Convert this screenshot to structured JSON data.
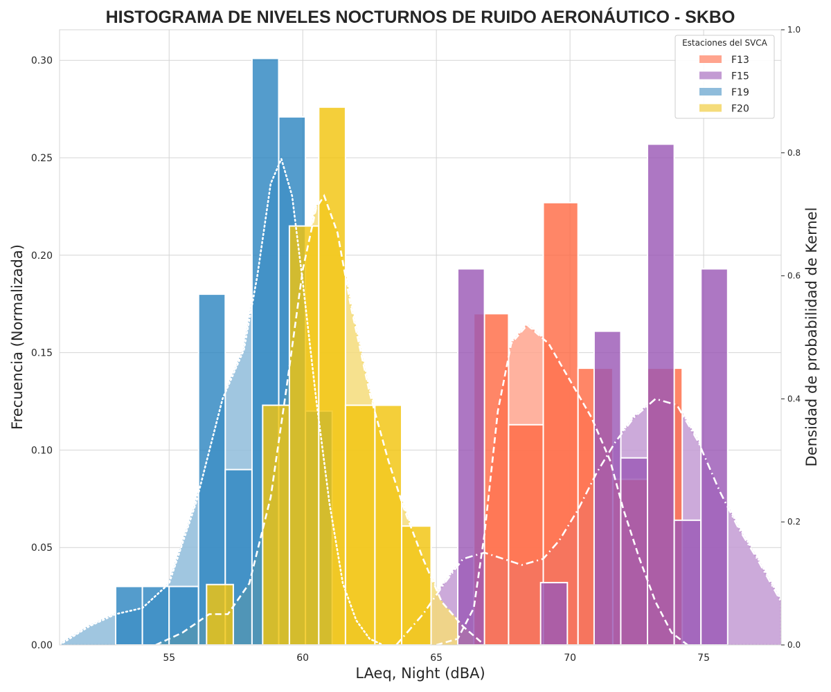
{
  "chart_data": {
    "type": "bar",
    "title": "HISTOGRAMA DE NIVELES NOCTURNOS DE RUIDO AERONÁUTICO - SKBO",
    "xlabel": "LAeq, Night (dBA)",
    "ylabel": "Frecuencia (Normalizada)",
    "y2label": "Densidad de probabilidad de Kernel",
    "xlim": [
      50.9,
      77.9
    ],
    "ylim": [
      0,
      0.3157
    ],
    "y2lim": [
      0,
      1.0
    ],
    "xticks": [
      "55",
      "60",
      "65",
      "70",
      "75"
    ],
    "yticks": [
      "0.00",
      "0.05",
      "0.10",
      "0.15",
      "0.20",
      "0.25",
      "0.30"
    ],
    "y2ticks": [
      "0.0",
      "0.2",
      "0.4",
      "0.6",
      "0.8",
      "1.0"
    ],
    "grid": true,
    "legend": {
      "title": "Estaciones del SVCA",
      "position": "top-right"
    },
    "series": [
      {
        "name": "F13",
        "color": "#FF6B45",
        "kde_color": "#FFA48E",
        "kde_style": "dashed",
        "bars": [
          {
            "x0": 66.4,
            "x1": 67.7,
            "value": 0.17
          },
          {
            "x0": 67.7,
            "x1": 69.0,
            "value": 0.113
          },
          {
            "x0": 69.0,
            "x1": 70.3,
            "value": 0.227
          },
          {
            "x0": 70.3,
            "x1": 71.6,
            "value": 0.142
          },
          {
            "x0": 71.6,
            "x1": 72.9,
            "value": 0.085
          },
          {
            "x0": 72.9,
            "x1": 74.2,
            "value": 0.142
          }
        ],
        "kde": [
          [
            65.0,
            0.0
          ],
          [
            65.8,
            0.01
          ],
          [
            66.4,
            0.06
          ],
          [
            66.8,
            0.18
          ],
          [
            67.3,
            0.38
          ],
          [
            67.8,
            0.49
          ],
          [
            68.4,
            0.52
          ],
          [
            69.2,
            0.49
          ],
          [
            70.0,
            0.43
          ],
          [
            70.8,
            0.37
          ],
          [
            71.5,
            0.3
          ],
          [
            72.0,
            0.22
          ],
          [
            72.6,
            0.14
          ],
          [
            73.2,
            0.07
          ],
          [
            73.8,
            0.02
          ],
          [
            74.4,
            0.0
          ]
        ]
      },
      {
        "name": "F15",
        "color": "#9B59B6",
        "kde_color": "#C39BD3",
        "kde_style": "dashdot",
        "bars": [
          {
            "x0": 65.8,
            "x1": 66.8,
            "value": 0.193
          },
          {
            "x0": 68.9,
            "x1": 69.9,
            "value": 0.032
          },
          {
            "x0": 70.9,
            "x1": 71.9,
            "value": 0.161
          },
          {
            "x0": 71.9,
            "x1": 72.9,
            "value": 0.096
          },
          {
            "x0": 72.9,
            "x1": 73.9,
            "value": 0.257
          },
          {
            "x0": 73.9,
            "x1": 74.9,
            "value": 0.064
          },
          {
            "x0": 74.9,
            "x1": 75.9,
            "value": 0.193
          }
        ],
        "kde": [
          [
            63.5,
            0.0
          ],
          [
            64.5,
            0.05
          ],
          [
            65.3,
            0.1
          ],
          [
            66.0,
            0.14
          ],
          [
            66.8,
            0.15
          ],
          [
            67.5,
            0.14
          ],
          [
            68.2,
            0.13
          ],
          [
            69.0,
            0.14
          ],
          [
            69.6,
            0.17
          ],
          [
            70.3,
            0.22
          ],
          [
            71.0,
            0.28
          ],
          [
            71.7,
            0.33
          ],
          [
            72.4,
            0.37
          ],
          [
            73.2,
            0.4
          ],
          [
            74.0,
            0.39
          ],
          [
            74.8,
            0.33
          ],
          [
            75.6,
            0.25
          ],
          [
            76.3,
            0.19
          ],
          [
            77.0,
            0.14
          ],
          [
            77.9,
            0.07
          ]
        ]
      },
      {
        "name": "F19",
        "color": "#2E86C1",
        "kde_color": "#8FBCDB",
        "kde_style": "dotted",
        "bars": [
          {
            "x0": 53.0,
            "x1": 54.0,
            "value": 0.03
          },
          {
            "x0": 54.0,
            "x1": 55.0,
            "value": 0.03
          },
          {
            "x0": 55.0,
            "x1": 56.1,
            "value": 0.03
          },
          {
            "x0": 56.1,
            "x1": 57.1,
            "value": 0.18
          },
          {
            "x0": 57.1,
            "x1": 58.1,
            "value": 0.09
          },
          {
            "x0": 58.1,
            "x1": 59.1,
            "value": 0.301
          },
          {
            "x0": 59.1,
            "x1": 60.1,
            "value": 0.271
          },
          {
            "x0": 60.1,
            "x1": 61.1,
            "value": 0.12
          }
        ],
        "kde": [
          [
            50.9,
            0.0
          ],
          [
            52.0,
            0.03
          ],
          [
            53.0,
            0.05
          ],
          [
            54.0,
            0.06
          ],
          [
            55.0,
            0.1
          ],
          [
            56.0,
            0.23
          ],
          [
            57.0,
            0.4
          ],
          [
            57.8,
            0.48
          ],
          [
            58.3,
            0.6
          ],
          [
            58.8,
            0.75
          ],
          [
            59.2,
            0.79
          ],
          [
            59.6,
            0.73
          ],
          [
            60.0,
            0.59
          ],
          [
            60.5,
            0.4
          ],
          [
            61.0,
            0.23
          ],
          [
            61.5,
            0.1
          ],
          [
            62.0,
            0.04
          ],
          [
            62.5,
            0.01
          ],
          [
            63.0,
            0.0
          ]
        ]
      },
      {
        "name": "F20",
        "color": "#F1C40F",
        "kde_color": "#F5DC7A",
        "kde_style": "dashed",
        "bars": [
          {
            "x0": 56.4,
            "x1": 57.4,
            "value": 0.031
          },
          {
            "x0": 58.5,
            "x1": 59.5,
            "value": 0.123
          },
          {
            "x0": 59.5,
            "x1": 60.6,
            "value": 0.215
          },
          {
            "x0": 60.6,
            "x1": 61.6,
            "value": 0.276
          },
          {
            "x0": 61.6,
            "x1": 62.7,
            "value": 0.123
          },
          {
            "x0": 62.7,
            "x1": 63.7,
            "value": 0.123
          },
          {
            "x0": 63.7,
            "x1": 64.8,
            "value": 0.061
          }
        ],
        "kde": [
          [
            54.5,
            0.0
          ],
          [
            55.5,
            0.02
          ],
          [
            56.5,
            0.05
          ],
          [
            57.2,
            0.05
          ],
          [
            58.0,
            0.1
          ],
          [
            58.8,
            0.24
          ],
          [
            59.4,
            0.42
          ],
          [
            60.0,
            0.61
          ],
          [
            60.5,
            0.71
          ],
          [
            60.8,
            0.73
          ],
          [
            61.3,
            0.67
          ],
          [
            61.8,
            0.55
          ],
          [
            62.5,
            0.41
          ],
          [
            63.2,
            0.3
          ],
          [
            63.8,
            0.22
          ],
          [
            64.5,
            0.14
          ],
          [
            65.2,
            0.07
          ],
          [
            66.0,
            0.03
          ],
          [
            66.8,
            0.0
          ]
        ]
      }
    ]
  }
}
